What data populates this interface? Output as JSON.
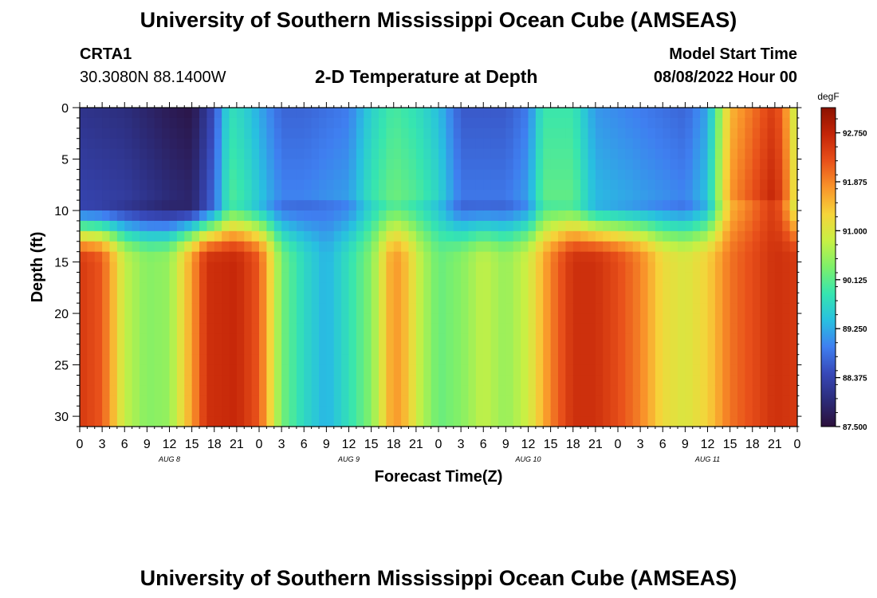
{
  "page": {
    "title": "University of Southern Mississippi Ocean Cube (AMSEAS)",
    "station_id": "CRTA1",
    "station_coords": "30.3080N  88.1400W",
    "plot_title": "2-D Temperature at Depth",
    "model_start_label": "Model Start Time",
    "model_start_value": "08/08/2022 Hour 00",
    "footer_title": "University of Southern Mississippi Ocean Cube (AMSEAS)"
  },
  "chart_data": {
    "type": "heatmap",
    "title": "2-D Temperature at Depth",
    "xlabel": "Forecast Time(Z)",
    "ylabel": "Depth (ft)",
    "x_hours": [
      0,
      96
    ],
    "x_tick_labels": [
      "0",
      "3",
      "6",
      "9",
      "12",
      "15",
      "18",
      "21",
      "0",
      "3",
      "6",
      "9",
      "12",
      "15",
      "18",
      "21",
      "0",
      "3",
      "6",
      "9",
      "12",
      "15",
      "18",
      "21",
      "0",
      "3",
      "6",
      "9",
      "12",
      "15",
      "18",
      "21",
      "0"
    ],
    "day_labels": [
      {
        "label": "AUG 8",
        "hour": 12
      },
      {
        "label": "AUG 9",
        "hour": 36
      },
      {
        "label": "AUG 10",
        "hour": 60
      },
      {
        "label": "AUG 11",
        "hour": 84
      }
    ],
    "y_range_ft": [
      0,
      31
    ],
    "y_ticks": [
      0,
      5,
      10,
      15,
      20,
      25,
      30
    ],
    "colorbar": {
      "unit": "degF",
      "min": 87.5,
      "max": 93.2,
      "tick_values": [
        92.75,
        91.875,
        91.0,
        90.125,
        89.25,
        88.375,
        87.5
      ],
      "tick_labels": [
        "92.750",
        "91.875",
        "91.000",
        "90.125",
        "89.250",
        "88.375",
        "87.500"
      ],
      "colors": [
        "#2b0f3a",
        "#2c2c7a",
        "#3748b8",
        "#3f7ff0",
        "#28c0e0",
        "#36e5b0",
        "#7df06a",
        "#c8f044",
        "#f6d43a",
        "#f9942a",
        "#e8501a",
        "#c42508",
        "#8c1200"
      ]
    },
    "surface_temp_degF": [
      [
        0,
        88.1
      ],
      [
        6,
        88.0
      ],
      [
        12,
        87.7
      ],
      [
        15,
        87.6
      ],
      [
        18,
        88.5
      ],
      [
        20,
        89.8
      ],
      [
        22,
        89.6
      ],
      [
        27,
        88.7
      ],
      [
        30,
        88.7
      ],
      [
        36,
        88.9
      ],
      [
        39,
        89.6
      ],
      [
        42,
        90.0
      ],
      [
        45,
        89.8
      ],
      [
        48,
        89.4
      ],
      [
        51,
        88.6
      ],
      [
        57,
        88.6
      ],
      [
        60,
        88.9
      ],
      [
        62,
        89.9
      ],
      [
        66,
        89.9
      ],
      [
        69,
        89.1
      ],
      [
        75,
        88.9
      ],
      [
        81,
        88.7
      ],
      [
        84,
        89.2
      ],
      [
        87,
        91.5
      ],
      [
        93,
        92.5
      ],
      [
        95,
        91.5
      ],
      [
        96,
        90.5
      ]
    ],
    "deep_temp_degF": [
      [
        0,
        92.5
      ],
      [
        3,
        92.2
      ],
      [
        6,
        90.8
      ],
      [
        9,
        90.4
      ],
      [
        12,
        90.5
      ],
      [
        15,
        91.7
      ],
      [
        17,
        92.6
      ],
      [
        21,
        92.7
      ],
      [
        24,
        92.2
      ],
      [
        25,
        91.6
      ],
      [
        27,
        90.3
      ],
      [
        30,
        89.7
      ],
      [
        33,
        89.3
      ],
      [
        36,
        89.8
      ],
      [
        39,
        90.4
      ],
      [
        42,
        91.8
      ],
      [
        44,
        91.4
      ],
      [
        45,
        90.9
      ],
      [
        48,
        90.2
      ],
      [
        51,
        90.4
      ],
      [
        54,
        90.8
      ],
      [
        57,
        90.5
      ],
      [
        60,
        90.9
      ],
      [
        63,
        91.9
      ],
      [
        66,
        92.6
      ],
      [
        69,
        92.6
      ],
      [
        72,
        92.3
      ],
      [
        75,
        91.9
      ],
      [
        78,
        91.2
      ],
      [
        81,
        91.0
      ],
      [
        84,
        91.3
      ],
      [
        87,
        92.0
      ],
      [
        90,
        92.3
      ],
      [
        93,
        92.6
      ],
      [
        96,
        92.5
      ]
    ],
    "thermocline_depth_ft": 11
  }
}
